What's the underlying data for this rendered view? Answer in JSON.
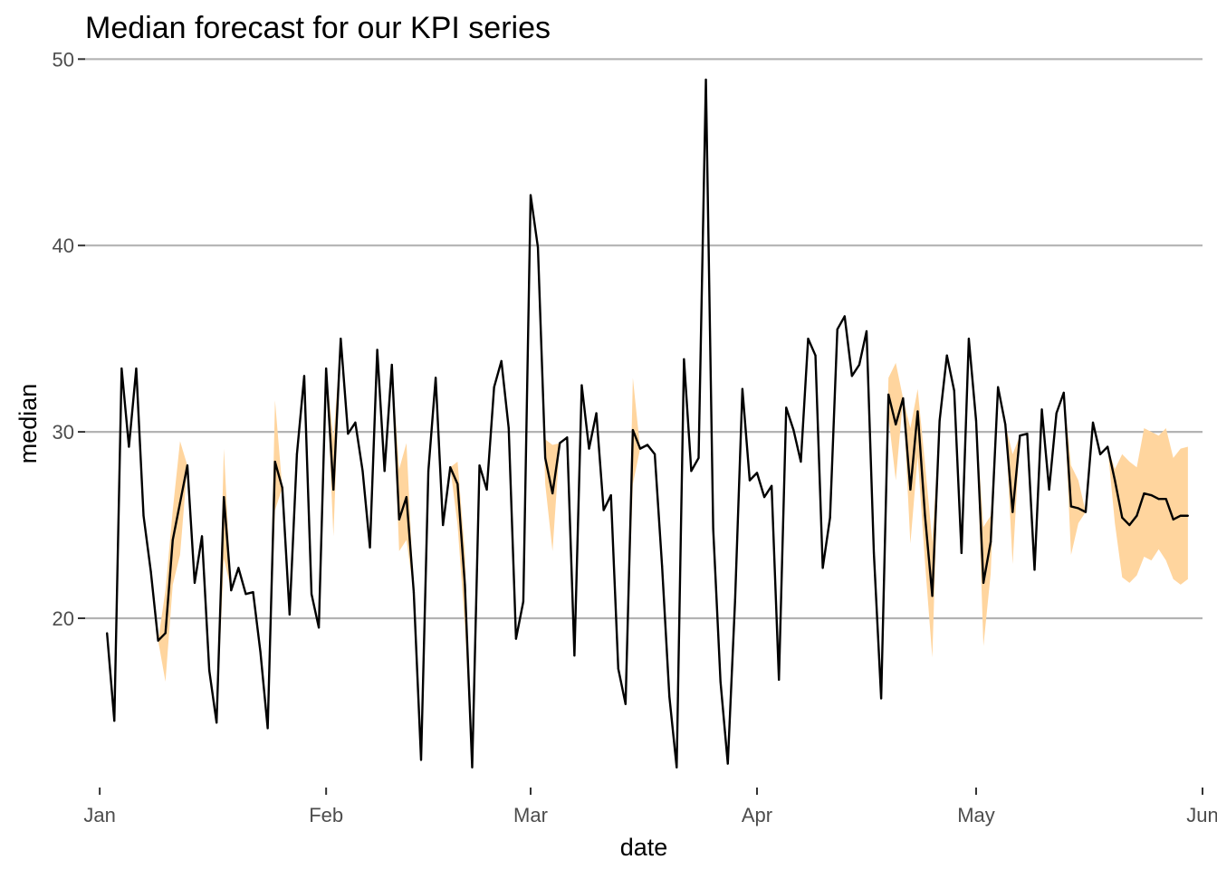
{
  "chart_data": {
    "type": "line",
    "title": "Median forecast for our KPI series",
    "xlabel": "date",
    "ylabel": "median",
    "x_range": [
      "2022-12-30",
      "2023-06-01"
    ],
    "ylim": [
      11.5,
      50.5
    ],
    "x_ticks": [
      {
        "date": "2023-01-01",
        "label": "Jan"
      },
      {
        "date": "2023-02-01",
        "label": "Feb"
      },
      {
        "date": "2023-03-01",
        "label": "Mar"
      },
      {
        "date": "2023-04-01",
        "label": "Apr"
      },
      {
        "date": "2023-05-01",
        "label": "May"
      },
      {
        "date": "2023-06-01",
        "label": "Jun"
      }
    ],
    "y_ticks": [
      20,
      30,
      40,
      50
    ],
    "grid": "horizontal major",
    "line_color": "#000000",
    "band_color": "#FFD59E",
    "start_date": "2023-01-02",
    "series": [
      {
        "values": [
          19.2,
          14.5,
          33.4,
          29.2,
          33.4,
          25.5,
          22.5,
          18.8,
          19.2,
          24.2,
          26.2,
          28.2,
          21.9,
          24.4,
          17.2,
          14.4,
          26.5,
          21.5,
          22.7,
          21.3,
          21.4,
          18.2,
          14.1,
          28.4,
          27.0,
          20.2,
          28.8,
          33.0,
          21.3,
          19.5,
          33.4,
          26.9,
          35.0,
          29.9,
          30.5,
          27.9,
          23.8,
          34.4,
          27.9,
          33.6,
          25.3,
          26.5,
          21.4,
          12.4,
          27.9,
          32.9,
          25.0,
          28.1,
          27.2,
          21.8,
          12.0,
          28.2,
          26.9,
          32.4,
          33.8,
          30.2,
          18.9,
          20.9,
          42.7,
          39.9,
          28.6,
          26.7,
          29.4,
          29.7,
          18.0,
          32.5,
          29.1,
          31.0,
          25.8,
          26.6,
          17.3,
          15.4,
          30.1,
          29.1,
          29.3,
          28.8,
          22.8,
          15.8,
          12.0,
          33.9,
          27.9,
          28.6,
          48.9,
          24.8,
          16.6,
          12.2,
          21.0,
          32.3,
          27.4,
          27.8,
          26.5,
          27.1,
          16.7,
          31.3,
          30.1,
          28.4,
          35.0,
          34.1,
          22.7,
          25.4,
          35.5,
          36.2,
          33.0,
          33.6,
          35.4,
          23.5,
          15.7,
          32.0,
          30.4,
          31.8,
          26.9,
          31.1,
          25.5,
          21.2,
          30.6,
          34.1,
          32.2,
          23.5,
          35.0,
          30.6,
          21.9,
          24.1,
          32.4,
          30.4,
          25.7,
          29.8,
          29.9,
          22.6,
          31.2,
          26.9,
          31.0,
          32.1,
          26.0,
          25.9,
          25.7,
          30.5,
          28.8,
          29.2,
          27.4,
          25.4,
          25.0,
          25.5,
          26.7,
          26.6,
          26.4,
          26.4,
          25.3,
          25.5,
          25.5
        ]
      }
    ],
    "band": {
      "lower": [
        19.2,
        14.5,
        33.4,
        29.2,
        33.4,
        25.5,
        22.5,
        18.8,
        16.6,
        21.8,
        23.4,
        28.2,
        21.9,
        24.4,
        17.2,
        14.4,
        23.2,
        21.5,
        22.7,
        21.3,
        21.4,
        18.2,
        14.1,
        25.8,
        27.0,
        20.2,
        28.8,
        33.0,
        21.3,
        19.5,
        33.4,
        24.4,
        35.0,
        29.9,
        30.5,
        27.9,
        23.8,
        34.4,
        27.9,
        33.6,
        23.6,
        24.2,
        21.4,
        12.4,
        27.9,
        32.9,
        25.0,
        28.1,
        25.0,
        19.6,
        12.0,
        28.2,
        26.9,
        32.4,
        33.8,
        30.2,
        18.9,
        20.9,
        42.7,
        39.9,
        27.2,
        23.6,
        29.4,
        29.7,
        18.0,
        32.5,
        29.1,
        31.0,
        25.8,
        26.6,
        17.3,
        15.4,
        27.2,
        29.1,
        29.3,
        28.8,
        22.8,
        15.8,
        12.0,
        33.9,
        27.9,
        28.6,
        48.9,
        24.8,
        16.6,
        12.2,
        21.0,
        32.3,
        27.4,
        27.8,
        26.5,
        27.1,
        16.7,
        31.3,
        30.1,
        28.4,
        35.0,
        34.1,
        22.7,
        25.4,
        35.5,
        36.2,
        33.0,
        33.6,
        35.4,
        23.5,
        15.7,
        30.8,
        27.4,
        31.8,
        24.0,
        28.7,
        23.0,
        17.9,
        30.6,
        34.1,
        32.2,
        23.5,
        35.0,
        30.6,
        18.5,
        22.4,
        32.4,
        30.4,
        22.9,
        29.8,
        29.9,
        22.6,
        31.2,
        26.9,
        31.0,
        32.1,
        23.4,
        25.1,
        25.7,
        30.5,
        28.8,
        29.2,
        25.1,
        22.2,
        21.9,
        22.3,
        23.3,
        23.1,
        23.7,
        23.1,
        22.1,
        21.8,
        22.1
      ],
      "upper": [
        19.2,
        14.5,
        33.4,
        29.2,
        33.4,
        25.5,
        22.5,
        18.8,
        21.5,
        25.8,
        29.5,
        28.2,
        21.9,
        24.4,
        17.2,
        14.4,
        29.1,
        21.5,
        22.7,
        21.3,
        21.4,
        18.2,
        14.1,
        31.7,
        27.0,
        20.2,
        28.8,
        33.0,
        21.3,
        19.5,
        33.4,
        29.6,
        35.0,
        29.9,
        30.5,
        27.9,
        23.8,
        34.4,
        27.9,
        33.6,
        28.0,
        29.4,
        21.4,
        12.4,
        27.9,
        32.9,
        25.0,
        28.1,
        28.4,
        23.5,
        12.0,
        28.2,
        26.9,
        32.4,
        33.8,
        30.2,
        18.9,
        20.9,
        42.7,
        39.9,
        29.6,
        29.3,
        29.4,
        29.7,
        18.0,
        32.5,
        29.1,
        31.0,
        25.8,
        26.6,
        17.3,
        15.4,
        32.9,
        29.1,
        29.3,
        28.8,
        22.8,
        15.8,
        12.0,
        33.9,
        27.9,
        28.6,
        48.9,
        24.8,
        16.6,
        12.2,
        21.0,
        32.3,
        27.4,
        27.8,
        26.5,
        27.1,
        16.7,
        31.3,
        30.1,
        28.4,
        35.0,
        34.1,
        22.7,
        25.4,
        35.5,
        36.2,
        33.0,
        33.6,
        35.4,
        23.5,
        15.7,
        32.9,
        33.7,
        31.8,
        30.2,
        32.3,
        28.3,
        24.1,
        30.6,
        34.1,
        32.2,
        23.5,
        35.0,
        30.6,
        24.9,
        25.5,
        32.4,
        30.4,
        28.8,
        29.8,
        29.9,
        22.6,
        31.2,
        26.9,
        31.0,
        32.1,
        28.2,
        27.4,
        25.7,
        30.5,
        28.8,
        29.2,
        28.0,
        28.8,
        28.4,
        28.1,
        30.2,
        30.0,
        29.8,
        30.2,
        28.6,
        29.1,
        29.2
      ]
    }
  }
}
